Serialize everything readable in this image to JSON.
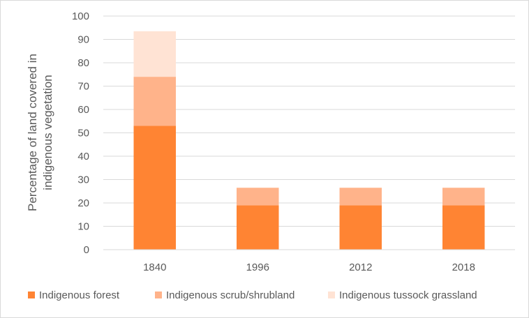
{
  "chart_data": {
    "type": "bar",
    "stacked": true,
    "title": "",
    "xlabel": "",
    "ylabel_lines": [
      "Percentage of land covered in",
      "indigenous vegetation"
    ],
    "categories": [
      "1840",
      "1996",
      "2012",
      "2018"
    ],
    "series": [
      {
        "name": "Indigenous forest",
        "color": "#ff8433",
        "values": [
          53,
          19,
          19,
          19
        ]
      },
      {
        "name": "Indigenous scrub/shrubland",
        "color": "#ffb38a",
        "values": [
          21,
          7.5,
          7.5,
          7.5
        ]
      },
      {
        "name": "Indigenous tussock grassland",
        "color": "#ffe3d4",
        "values": [
          19.5,
          0,
          0,
          0
        ]
      }
    ],
    "ylim": [
      0,
      100
    ],
    "yticks": [
      0,
      10,
      20,
      30,
      40,
      50,
      60,
      70,
      80,
      90,
      100
    ],
    "gridlines": true,
    "legend_position": "bottom"
  }
}
